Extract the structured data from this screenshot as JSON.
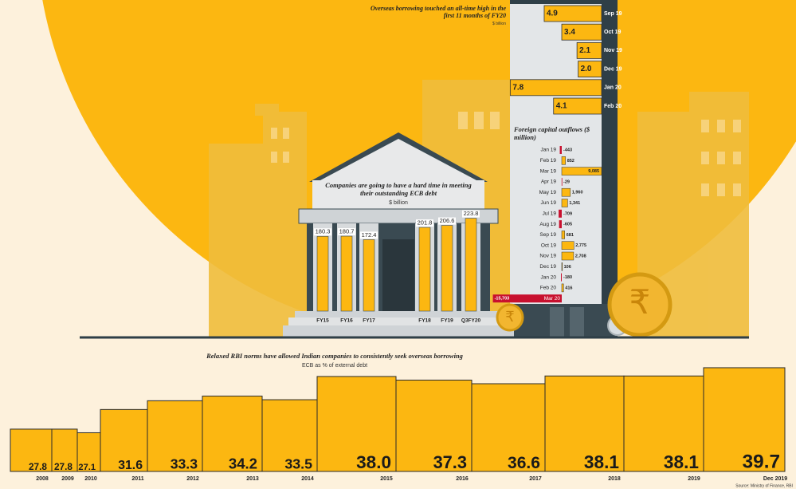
{
  "chart_data": [
    {
      "type": "bar",
      "orientation": "horizontal",
      "title": "Overseas borrowing touched an all-time high in the first 11 months of FY20",
      "subtitle": "$ billion",
      "categories": [
        "Sep 19",
        "Oct 19",
        "Nov 19",
        "Dec 19",
        "Jan 20",
        "Feb 20"
      ],
      "values": [
        4.9,
        3.4,
        2.1,
        2.0,
        7.8,
        4.1
      ],
      "value_labels": [
        "4.9",
        "3.4",
        "2.1",
        "2.0",
        "7.8",
        "4.1"
      ],
      "color": "#fcb711"
    },
    {
      "type": "bar",
      "orientation": "horizontal",
      "title": "Foreign capital outflows ($ million)",
      "categories": [
        "Jan 19",
        "Feb 19",
        "Mar 19",
        "Apr 19",
        "May 19",
        "Jun 19",
        "Jul 19",
        "Aug 19",
        "Sep 19",
        "Oct 19",
        "Nov 19",
        "Dec 19",
        "Jan 20",
        "Feb 20",
        "Mar 20"
      ],
      "values": [
        -443,
        852,
        9085,
        -29,
        1960,
        1341,
        -709,
        -605,
        681,
        2775,
        2708,
        106,
        -180,
        416,
        -15703
      ],
      "value_labels": [
        "-443",
        "852",
        "9,085",
        "-29",
        "1,960",
        "1,341",
        "-709",
        "-605",
        "681",
        "2,775",
        "2,708",
        "106",
        "-180",
        "416",
        "-15,703"
      ],
      "color": "#fcb711",
      "negative_color": "#c8102e"
    },
    {
      "type": "bar",
      "orientation": "vertical",
      "title": "Companies are going to have a hard time in meeting their outstanding ECB debt",
      "subtitle": "$ billion",
      "categories": [
        "FY15",
        "FY16",
        "FY17",
        "FY18",
        "FY19",
        "Q3FY20"
      ],
      "values": [
        180.3,
        180.7,
        172.4,
        201.8,
        206.6,
        223.8
      ],
      "color": "#fcb711"
    },
    {
      "type": "bar",
      "orientation": "vertical",
      "title": "Relaxed RBI norms have allowed Indian companies to consistently seek overseas borrowing",
      "subtitle": "ECB as % of external debt",
      "categories": [
        "2008",
        "2009",
        "2010",
        "2011",
        "2012",
        "2013",
        "2014",
        "2015",
        "2016",
        "2017",
        "2018",
        "2019",
        "Dec 2019"
      ],
      "values": [
        27.8,
        27.8,
        27.1,
        31.6,
        33.3,
        34.2,
        33.5,
        38.0,
        37.3,
        36.6,
        38.1,
        38.1,
        39.7
      ],
      "value_labels": [
        "27.8",
        "27.8",
        "27.1",
        "31.6",
        "33.3",
        "34.2",
        "33.5",
        "38.0",
        "37.3",
        "36.6",
        "38.1",
        "38.1",
        "39.7"
      ],
      "color": "#fcb711",
      "source": "Source: Ministry of Finance, RBI"
    }
  ]
}
